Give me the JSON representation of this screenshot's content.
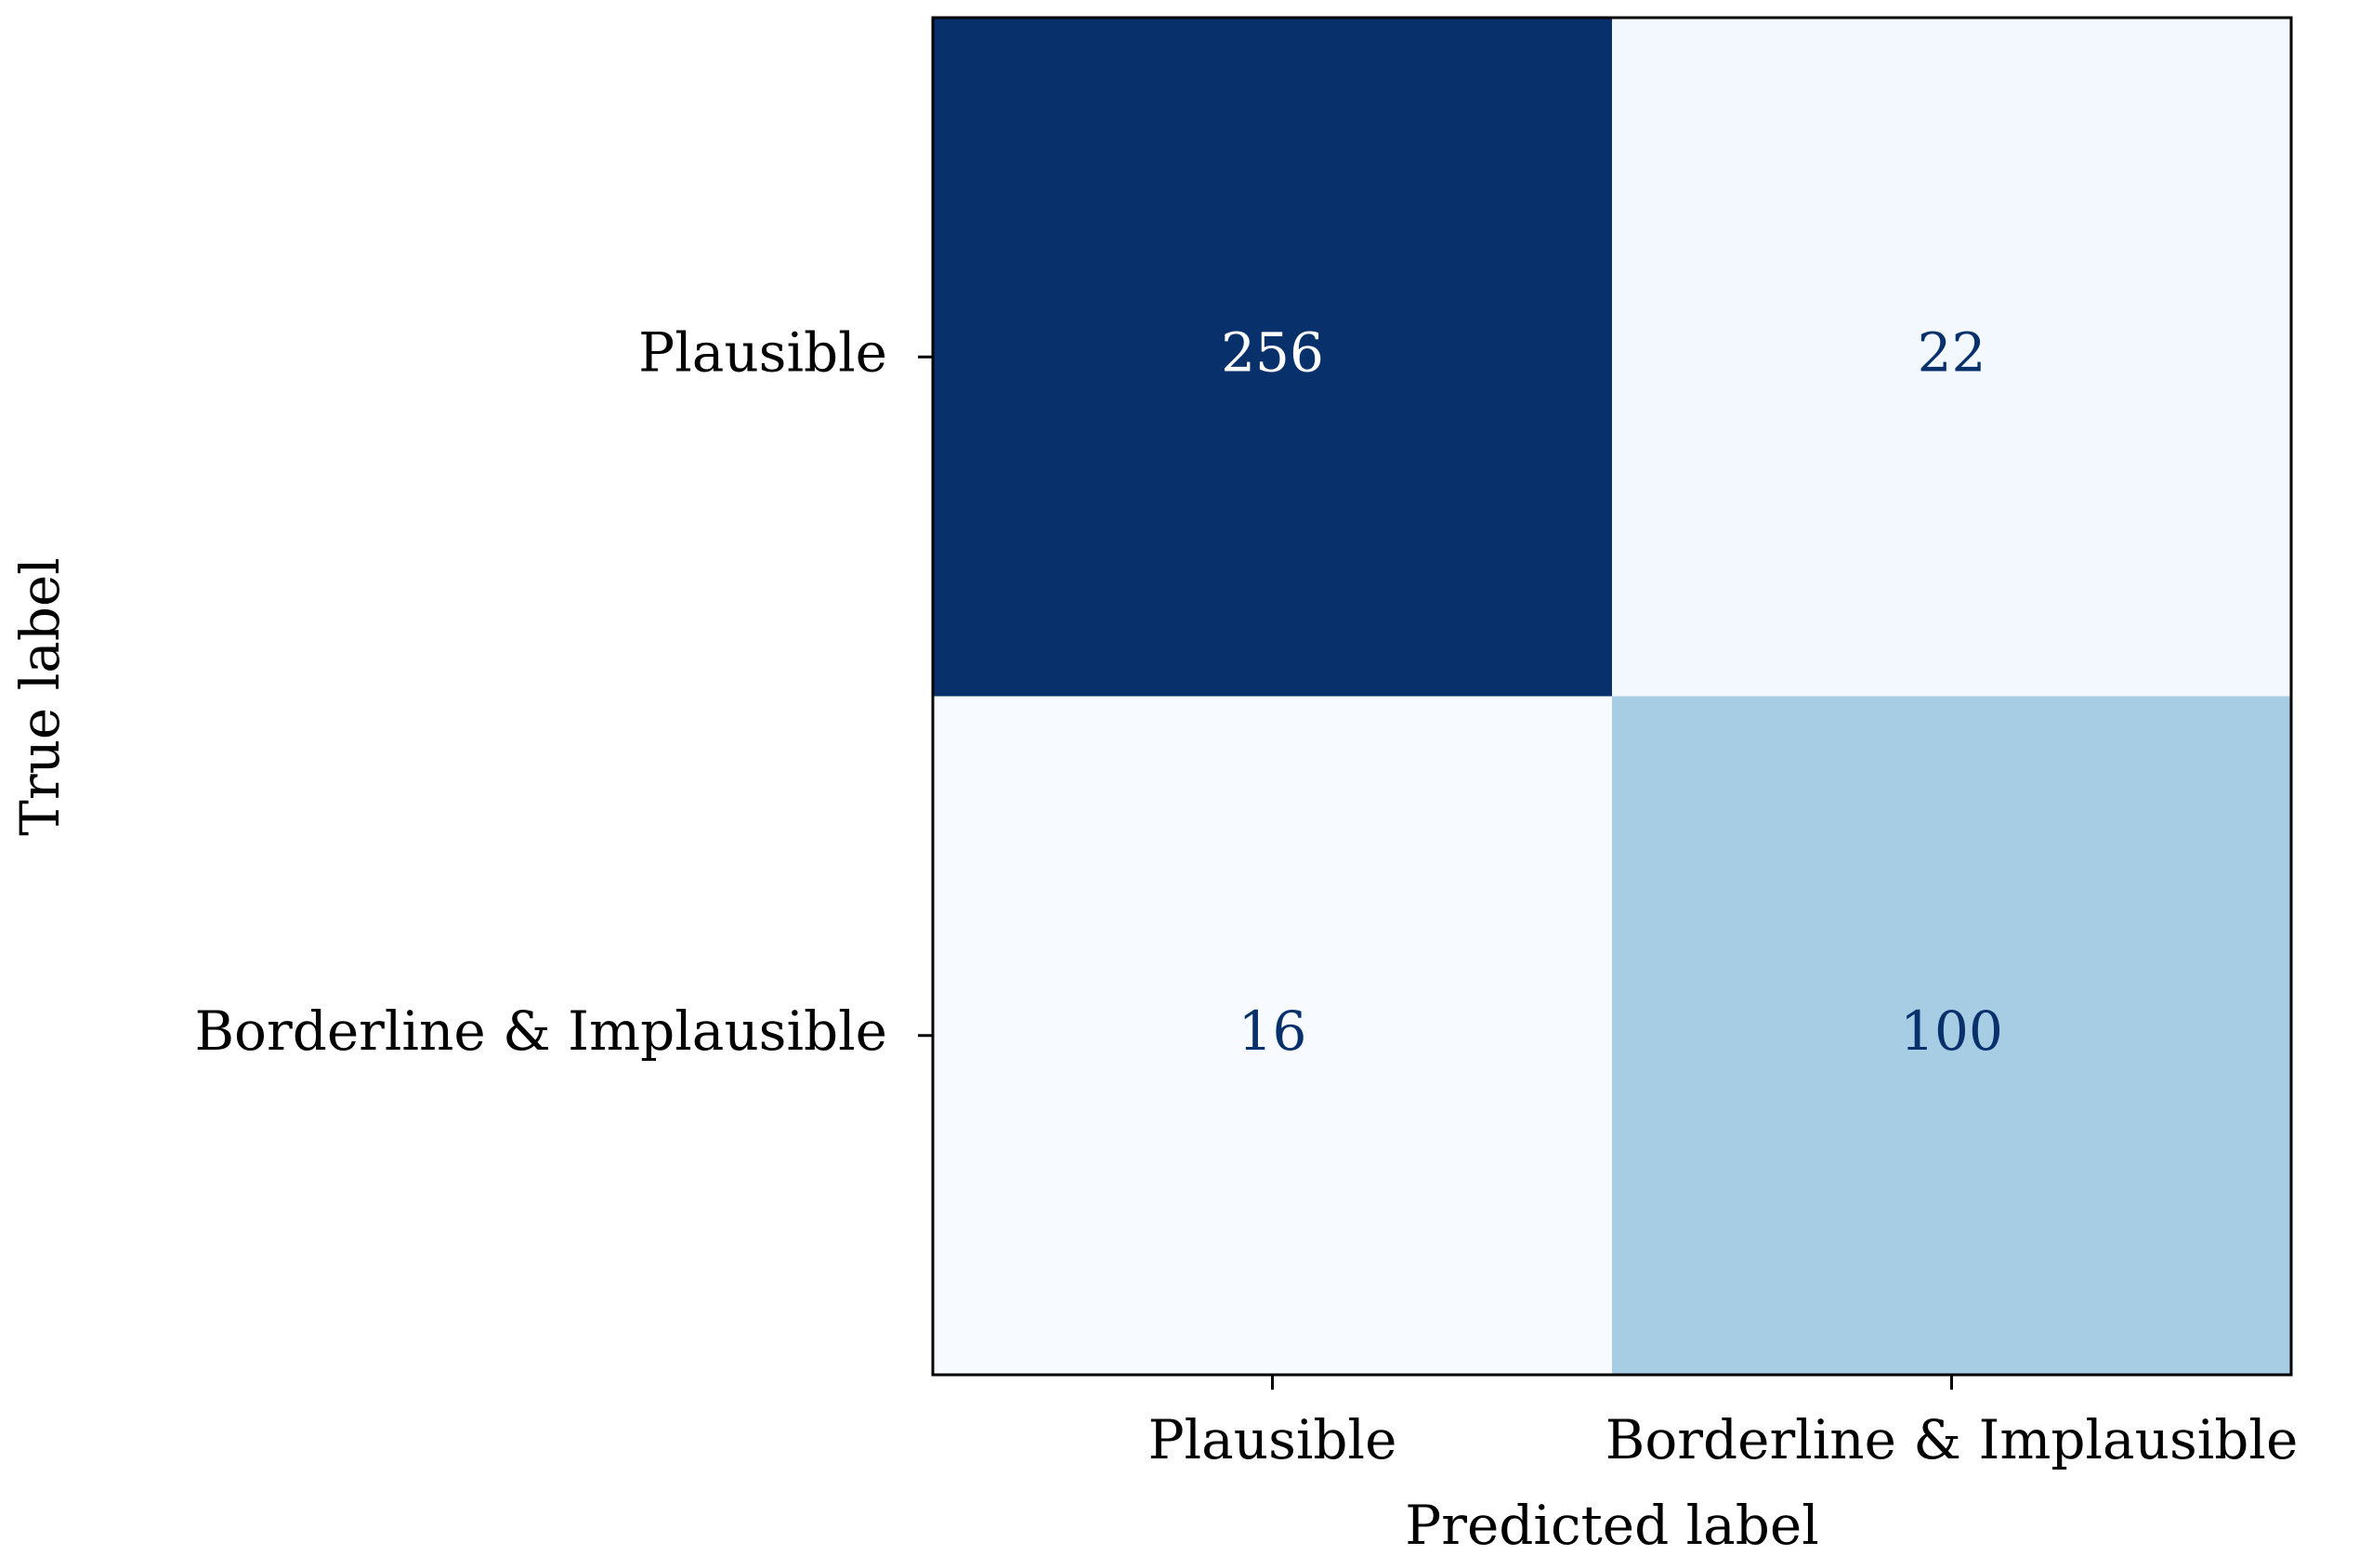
{
  "chart_data": {
    "type": "heatmap",
    "x_categories": [
      "Plausible",
      "Borderline & Implausible"
    ],
    "y_categories": [
      "Plausible",
      "Borderline & Implausible"
    ],
    "values": [
      [
        256,
        22
      ],
      [
        16,
        100
      ]
    ],
    "xlabel": "Predicted label",
    "ylabel": "True label",
    "colormap": "Blues"
  }
}
